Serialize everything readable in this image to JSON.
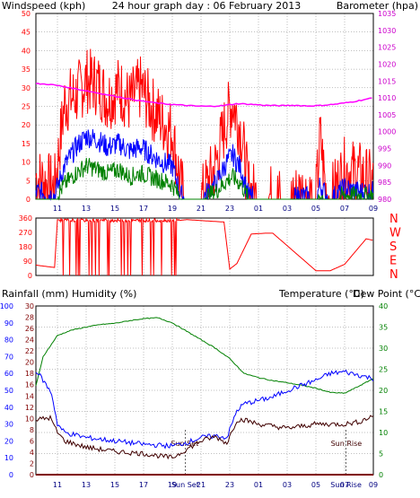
{
  "header": {
    "left_label": "Windspeed (kph)",
    "center_title": "24 hour graph day : 06 February 2013",
    "right_label": "Barometer (hpa)"
  },
  "colors": {
    "wind_gust": "#ff0000",
    "wind_avg": "#0000ff",
    "wind_low": "#008000",
    "barometer": "#ff00ff",
    "direction": "#ff0000",
    "temperature": "#008000",
    "humidity": "#0000ff",
    "dewpoint": "#400000",
    "rainfall": "#800000",
    "left_axis": "#ff0000",
    "right_axis": "#cc00cc",
    "time_axis": "#000080",
    "grid": "#808080"
  },
  "chart_data": [
    {
      "type": "line",
      "name": "wind-barometer",
      "x_ticks": [
        "11",
        "13",
        "15",
        "17",
        "19",
        "21",
        "23",
        "01",
        "03",
        "05",
        "07",
        "09"
      ],
      "y_left_ticks": [
        "0",
        "5",
        "10",
        "15",
        "20",
        "25",
        "30",
        "35",
        "40",
        "45",
        "50"
      ],
      "y_left_range": [
        0,
        50
      ],
      "y_right_ticks": [
        "980",
        "985",
        "990",
        "995",
        "1000",
        "1005",
        "1010",
        "1015",
        "1020",
        "1025",
        "1030",
        "1035"
      ],
      "y_right_range": [
        980,
        1035
      ],
      "series": [
        {
          "name": "Windspeed",
          "role": "gust",
          "x": [
            9.5,
            10.8,
            11.5,
            12.3,
            13.0,
            13.8,
            14.5,
            15.3,
            16.0,
            16.8,
            17.5,
            18.3,
            19.0,
            19.6,
            20.0,
            21.0,
            22.0,
            22.8,
            23.2,
            23.8,
            24.3,
            25.0,
            26.0,
            27.0,
            28.0,
            29.0,
            29.3,
            29.7,
            30.0,
            31.0,
            32.0,
            33.0
          ],
          "y": [
            6,
            3,
            26,
            28,
            32,
            31,
            27,
            30,
            26,
            30,
            25,
            21,
            18,
            3,
            0,
            0,
            9,
            22,
            26,
            18,
            3,
            0,
            1,
            0,
            2,
            0,
            17,
            2,
            0,
            8,
            7,
            4
          ]
        },
        {
          "name": "Windspeed",
          "role": "average",
          "x": [
            9.5,
            10.8,
            11.5,
            12.3,
            13.0,
            13.8,
            14.5,
            15.3,
            16.0,
            16.8,
            17.5,
            18.3,
            19.0,
            19.6,
            20.0,
            21.0,
            22.0,
            22.8,
            23.2,
            23.8,
            24.3,
            25.0,
            26.0,
            27.0,
            28.0,
            29.0,
            29.3,
            29.7,
            30.0,
            31.0,
            32.0,
            33.0
          ],
          "y": [
            2,
            1,
            9,
            14,
            17,
            16,
            14,
            15,
            13,
            14,
            12,
            10,
            9,
            1,
            0,
            0,
            4,
            10,
            12,
            8,
            1,
            0,
            0,
            0,
            1,
            0,
            4,
            1,
            0,
            3,
            2,
            2
          ]
        },
        {
          "name": "Windspeed",
          "role": "low",
          "x": [
            9.5,
            10.8,
            11.5,
            12.3,
            13.0,
            13.8,
            14.5,
            15.3,
            16.0,
            16.8,
            17.5,
            18.3,
            19.0,
            19.6,
            20.0,
            21.0,
            22.0,
            22.8,
            23.2,
            23.8,
            24.3,
            25.0,
            26.0,
            27.0,
            28.0,
            29.0,
            29.3,
            29.7,
            30.0,
            31.0,
            32.0,
            33.0
          ],
          "y": [
            0,
            0,
            4,
            7,
            9,
            8,
            7,
            8,
            6,
            7,
            6,
            5,
            4,
            0,
            0,
            0,
            2,
            5,
            6,
            4,
            0,
            0,
            0,
            0,
            0,
            0,
            1,
            0,
            0,
            1,
            1,
            1
          ]
        },
        {
          "name": "Barometer",
          "axis": "right",
          "x": [
            9.5,
            10.5,
            11.5,
            12.5,
            13.5,
            14.5,
            15.5,
            16.5,
            17.5,
            18.5,
            19.5,
            20.5,
            21.5,
            22.5,
            23.5,
            24.5,
            25.5,
            26.5,
            27.5,
            28.5,
            29.5,
            30.5,
            31.5,
            32.5,
            33.0
          ],
          "y": [
            1014.2,
            1014.0,
            1013.3,
            1012.5,
            1011.7,
            1010.9,
            1010.1,
            1009.3,
            1008.7,
            1008.2,
            1007.9,
            1007.6,
            1007.5,
            1007.7,
            1008.3,
            1008.1,
            1007.8,
            1007.7,
            1007.8,
            1007.6,
            1007.8,
            1008.2,
            1008.8,
            1009.6,
            1010.0
          ]
        }
      ]
    },
    {
      "type": "line",
      "name": "wind-direction",
      "y_left_ticks": [
        "0",
        "90",
        "180",
        "270",
        "360"
      ],
      "y_range": [
        0,
        360
      ],
      "y_right_ticks": [
        "N",
        "W",
        "S",
        "E",
        "N"
      ],
      "series": [
        {
          "name": "Wind direction",
          "x": [
            9.5,
            10.8,
            11.0,
            11.3,
            19.5,
            20.0,
            22.6,
            23.0,
            23.5,
            24.5,
            25.5,
            26.0,
            29.0,
            30.0,
            31.0,
            32.5,
            33.0
          ],
          "y": [
            65,
            50,
            350,
            345,
            345,
            350,
            335,
            40,
            75,
            260,
            265,
            265,
            30,
            30,
            70,
            230,
            220
          ]
        }
      ]
    },
    {
      "type": "line",
      "name": "temp-humidity",
      "x_ticks": [
        "11",
        "13",
        "15",
        "17",
        "19",
        "21",
        "23",
        "01",
        "03",
        "05",
        "07",
        "09"
      ],
      "extra_x_labels": [
        "Sun Set",
        "Sun Rise"
      ],
      "events": [
        {
          "label": "Sun Set",
          "x": 19.9
        },
        {
          "label": "Sun Rise",
          "x": 31.1
        }
      ],
      "left_labels": {
        "rainfall": "Rainfall (mm)",
        "humidity": "Humidity (%)"
      },
      "right_labels": {
        "temperature": "Temperature (°C)",
        "dewpoint": "Dew Point (°C)"
      },
      "y_left_outer_ticks": [
        "0",
        "10",
        "20",
        "30",
        "40",
        "50",
        "60",
        "70",
        "80",
        "90",
        "100"
      ],
      "y_left_outer_range": [
        0,
        100
      ],
      "y_left_inner_ticks": [
        "0",
        "2",
        "4",
        "6",
        "8",
        "10",
        "12",
        "14",
        "16",
        "18",
        "20",
        "22",
        "24",
        "26",
        "28",
        "30"
      ],
      "y_left_inner_range": [
        0,
        30
      ],
      "y_right_ticks": [
        "0",
        "5",
        "10",
        "15",
        "20",
        "25",
        "30",
        "35",
        "40"
      ],
      "y_right_range": [
        0,
        40
      ],
      "series": [
        {
          "name": "Temperature",
          "axis": "right",
          "x": [
            9.5,
            10.0,
            11.0,
            12.0,
            13.0,
            14.0,
            15.0,
            16.0,
            17.0,
            18.0,
            19.0,
            20.0,
            21.0,
            22.0,
            23.0,
            24.0,
            25.0,
            26.0,
            27.0,
            28.0,
            29.0,
            30.0,
            31.0,
            32.0,
            33.0
          ],
          "y": [
            21,
            28,
            33,
            34.3,
            35,
            35.6,
            35.9,
            36.5,
            37.0,
            37.2,
            36.0,
            34.0,
            32.0,
            30.0,
            27.5,
            24.0,
            23.0,
            22.3,
            21.8,
            21.2,
            20.5,
            19.5,
            19.3,
            21.0,
            22.8
          ]
        },
        {
          "name": "Humidity",
          "axis": "outer",
          "x": [
            9.5,
            10.0,
            10.6,
            11.0,
            11.5,
            13.0,
            15.0,
            17.0,
            19.0,
            20.0,
            21.0,
            22.0,
            22.8,
            23.5,
            24.0,
            25.0,
            26.0,
            27.0,
            28.0,
            29.0,
            30.0,
            31.0,
            32.0,
            33.0
          ],
          "y": [
            62,
            56,
            48,
            30,
            25,
            22,
            20,
            18,
            17,
            19,
            22,
            23,
            22,
            38,
            42,
            44,
            46,
            50,
            53,
            56,
            60,
            61,
            59,
            57
          ]
        },
        {
          "name": "Dew Point",
          "axis": "right",
          "x": [
            9.5,
            10.5,
            11.0,
            11.5,
            13.0,
            15.0,
            17.0,
            19.0,
            20.0,
            21.0,
            22.0,
            22.8,
            23.5,
            24.0,
            25.0,
            26.0,
            27.0,
            28.0,
            29.0,
            30.0,
            31.0,
            32.0,
            33.0
          ],
          "y": [
            13,
            13.5,
            10,
            8,
            6.5,
            5.5,
            5,
            4,
            6,
            8,
            9,
            7.5,
            13,
            13,
            12,
            11.5,
            11,
            11.5,
            12,
            12,
            12,
            12.5,
            14
          ]
        },
        {
          "name": "Rainfall",
          "axis": "inner",
          "x": [
            9.5,
            33.0
          ],
          "y": [
            0,
            0
          ]
        }
      ]
    }
  ]
}
